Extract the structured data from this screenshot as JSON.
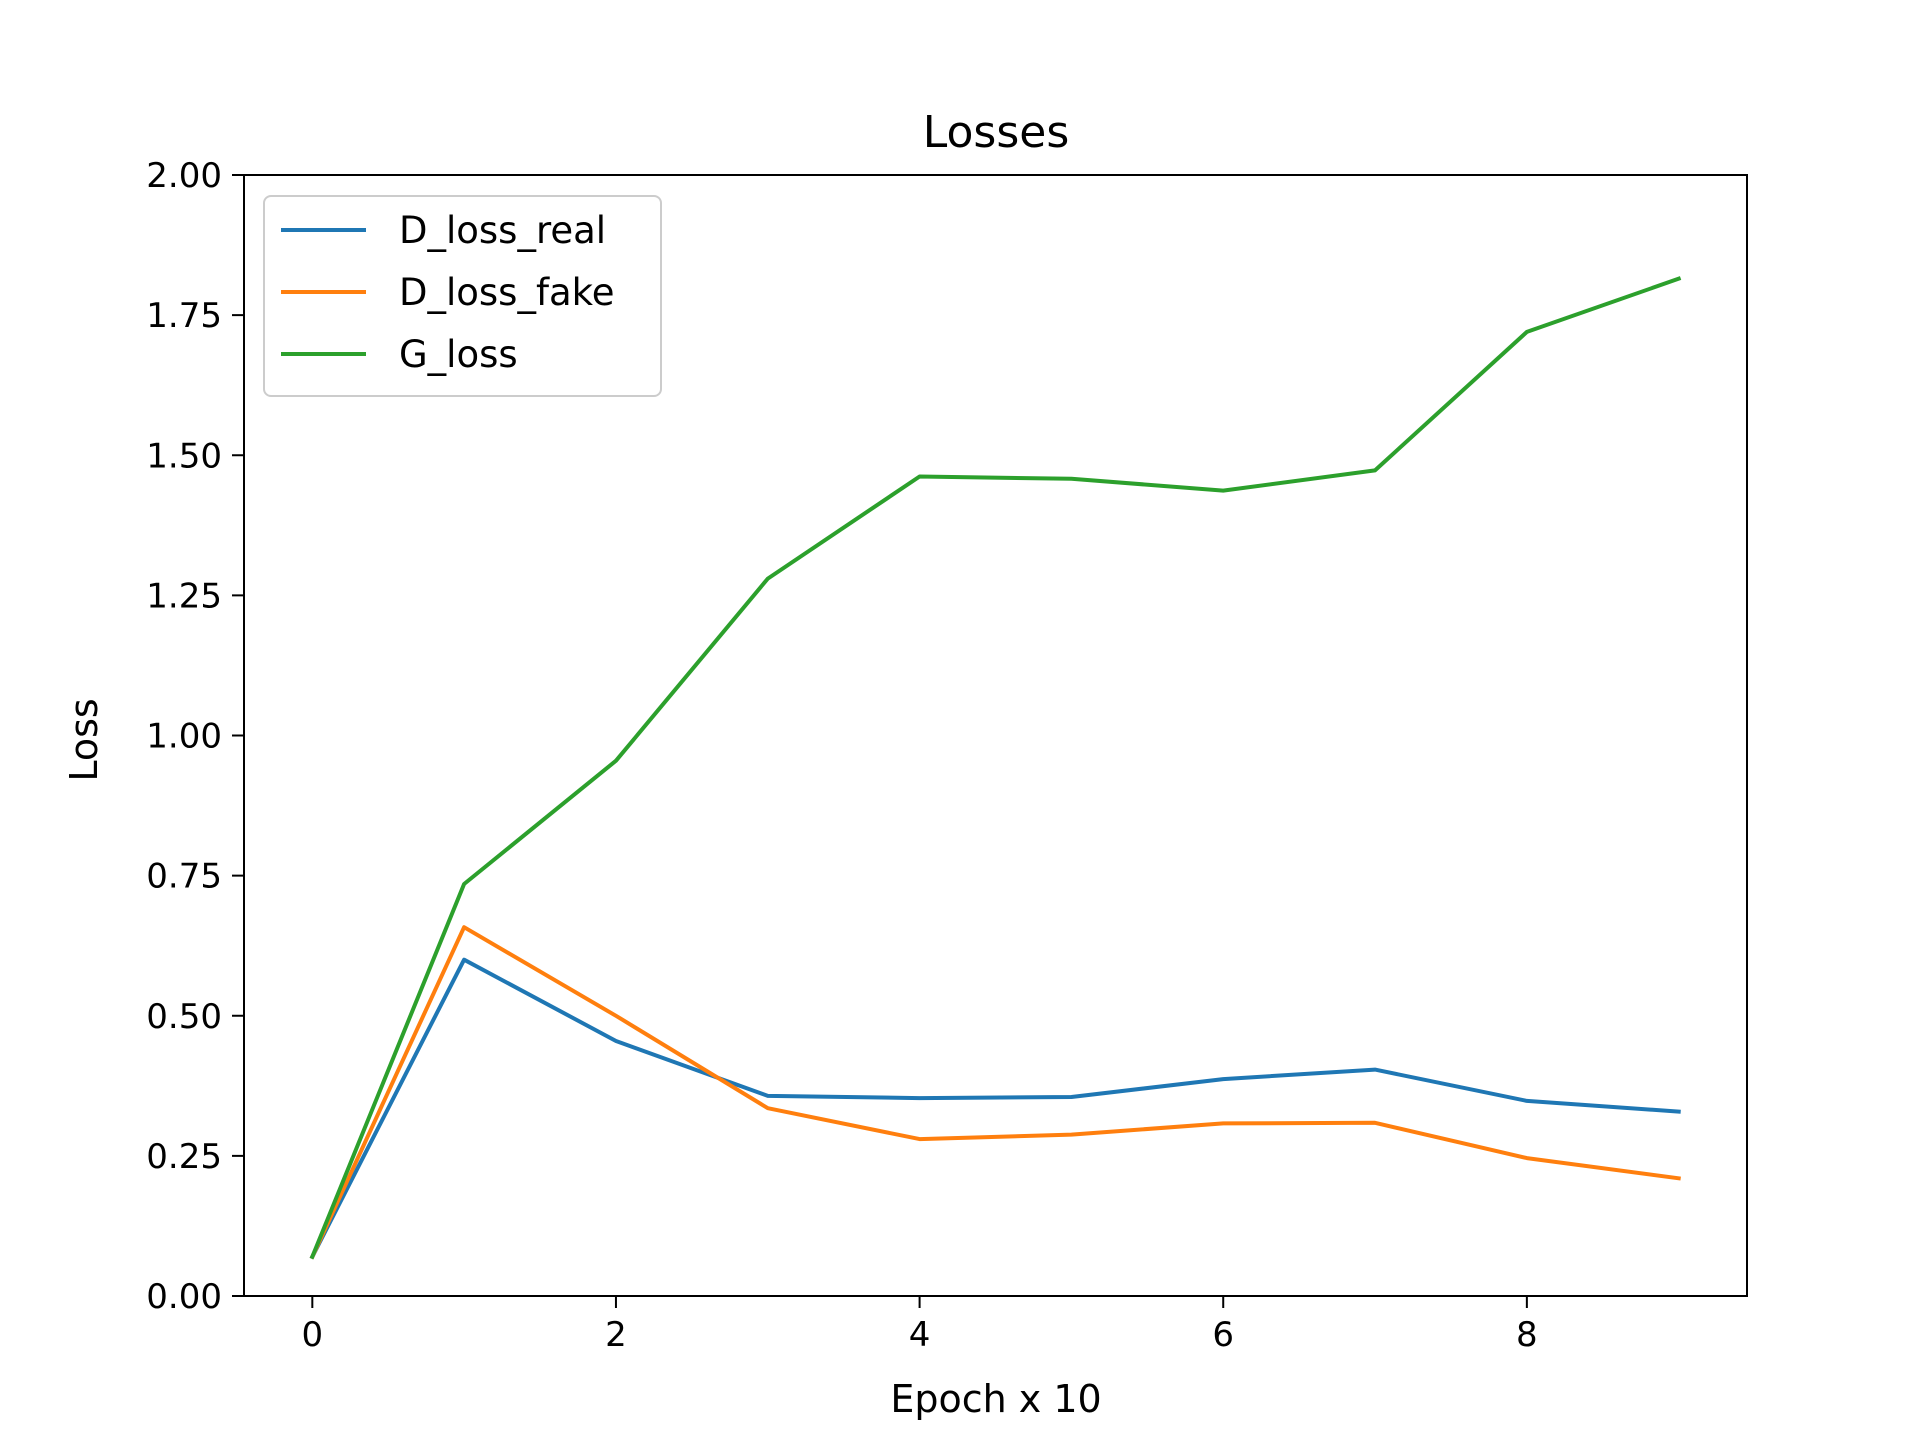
{
  "chart_data": {
    "type": "line",
    "title": "Losses",
    "xlabel": "Epoch x 10",
    "ylabel": "Loss",
    "xlim": [
      -0.45,
      9.45
    ],
    "ylim": [
      0,
      2
    ],
    "x": [
      0,
      1,
      2,
      3,
      4,
      5,
      6,
      7,
      8,
      9
    ],
    "xticks": [
      "0",
      "2",
      "4",
      "6",
      "8"
    ],
    "xtick_values": [
      0,
      2,
      4,
      6,
      8
    ],
    "yticks": [
      "0.00",
      "0.25",
      "0.50",
      "0.75",
      "1.00",
      "1.25",
      "1.50",
      "1.75",
      "2.00"
    ],
    "ytick_values": [
      0,
      0.25,
      0.5,
      0.75,
      1,
      1.25,
      1.5,
      1.75,
      2
    ],
    "grid": false,
    "legend_position": "upper-left",
    "series": [
      {
        "name": "D_loss_real",
        "color": "#1f77b4",
        "values": [
          0.07,
          0.6,
          0.455,
          0.357,
          0.353,
          0.355,
          0.387,
          0.404,
          0.348,
          0.329
        ]
      },
      {
        "name": "D_loss_fake",
        "color": "#ff7f0e",
        "values": [
          0.07,
          0.658,
          0.5,
          0.335,
          0.28,
          0.288,
          0.308,
          0.309,
          0.246,
          0.21
        ]
      },
      {
        "name": "G_loss",
        "color": "#2ca02c",
        "values": [
          0.07,
          0.735,
          0.955,
          1.28,
          1.462,
          1.458,
          1.437,
          1.473,
          1.72,
          1.815
        ]
      }
    ]
  }
}
